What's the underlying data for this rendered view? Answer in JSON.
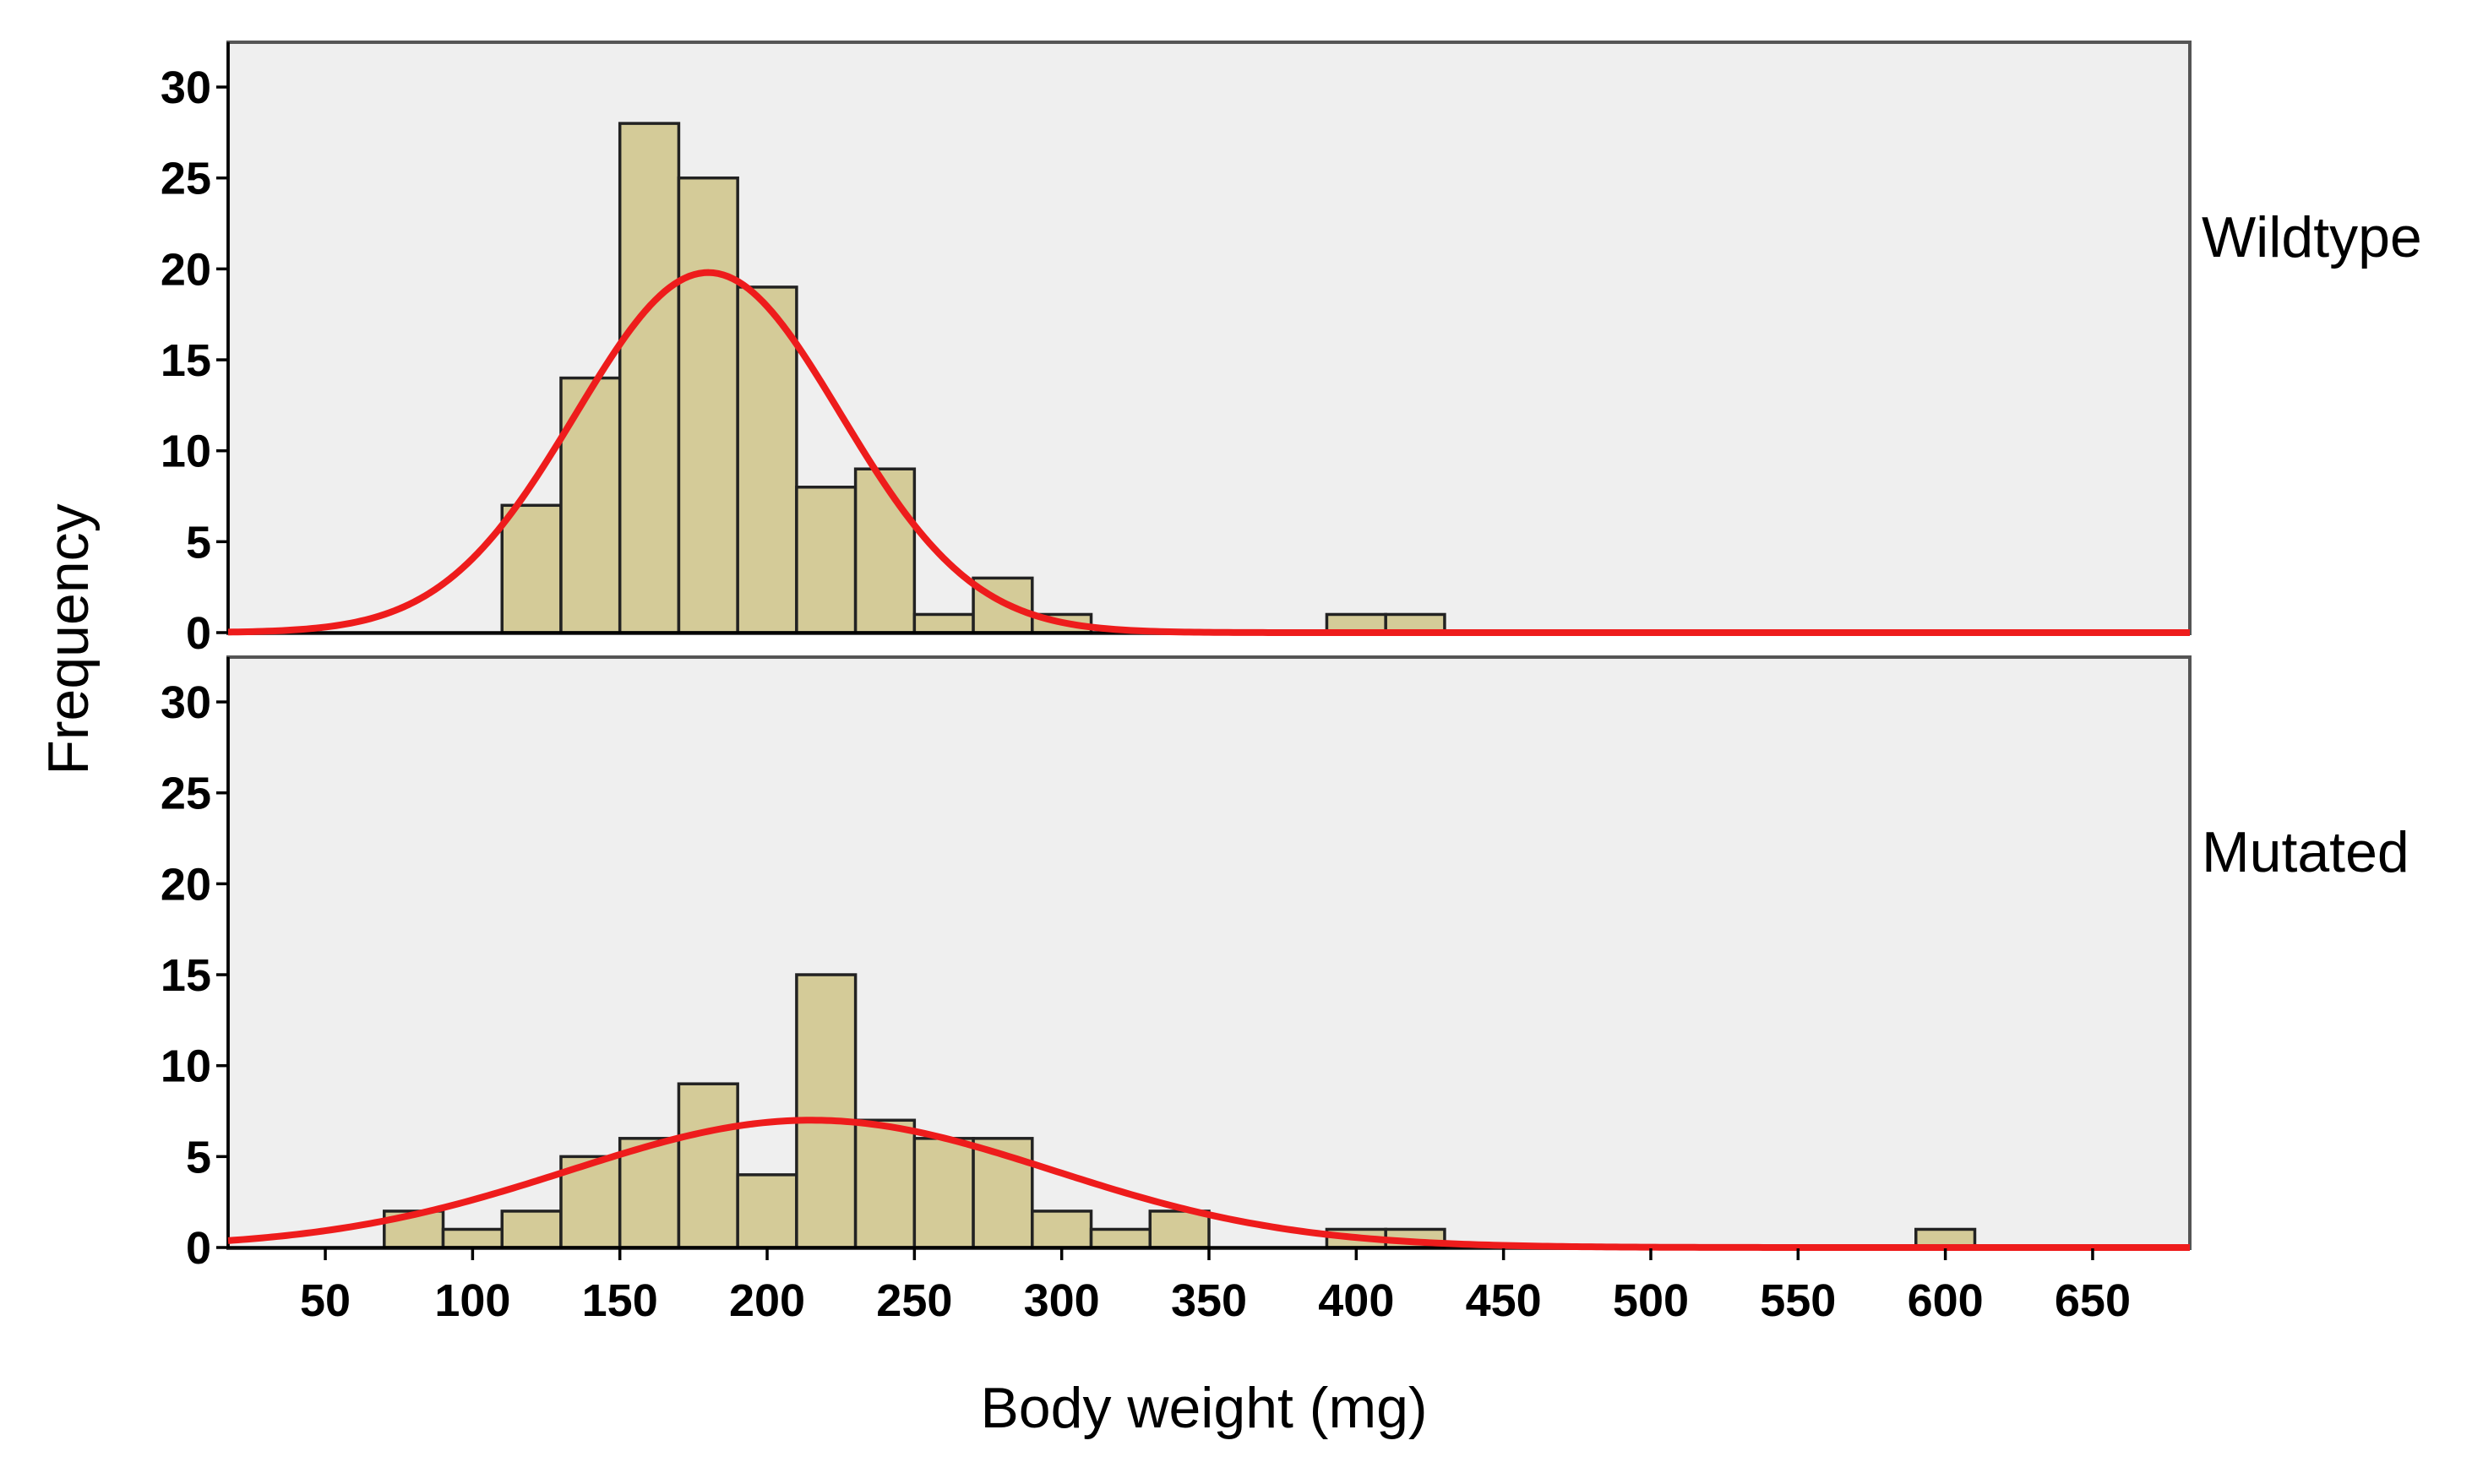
{
  "colors": {
    "bar_fill": "#d4cb98",
    "bar_stroke": "#222222",
    "curve": "#ee1c1c",
    "panel_background": "#efefef"
  },
  "chart_data": {
    "type": "bar",
    "subtype": "histogram with fitted normal curve, two stacked panels",
    "xlabel": "Body weight (mg)",
    "ylabel": "Frequency",
    "xlim": [
      17,
      683
    ],
    "ylim": [
      0,
      32
    ],
    "x_ticks": [
      50,
      100,
      150,
      200,
      250,
      300,
      350,
      400,
      450,
      500,
      550,
      600,
      650
    ],
    "y_ticks": [
      0,
      5,
      10,
      15,
      20,
      25,
      30
    ],
    "bin_width": 20,
    "grid": false,
    "panels": [
      {
        "name": "Wildtype",
        "bins": [
          {
            "start": 110,
            "count": 7
          },
          {
            "start": 130,
            "count": 14
          },
          {
            "start": 150,
            "count": 28
          },
          {
            "start": 170,
            "count": 25
          },
          {
            "start": 190,
            "count": 19
          },
          {
            "start": 210,
            "count": 8
          },
          {
            "start": 230,
            "count": 9
          },
          {
            "start": 250,
            "count": 1
          },
          {
            "start": 270,
            "count": 3
          },
          {
            "start": 290,
            "count": 1
          },
          {
            "start": 390,
            "count": 1
          },
          {
            "start": 410,
            "count": 1
          }
        ],
        "normal_fit": {
          "mean": 180,
          "sd": 45,
          "peak": 19.8
        }
      },
      {
        "name": "Mutated",
        "bins": [
          {
            "start": 70,
            "count": 2
          },
          {
            "start": 90,
            "count": 1
          },
          {
            "start": 110,
            "count": 2
          },
          {
            "start": 130,
            "count": 5
          },
          {
            "start": 150,
            "count": 6
          },
          {
            "start": 170,
            "count": 9
          },
          {
            "start": 190,
            "count": 4
          },
          {
            "start": 210,
            "count": 15
          },
          {
            "start": 230,
            "count": 7
          },
          {
            "start": 250,
            "count": 6
          },
          {
            "start": 270,
            "count": 6
          },
          {
            "start": 290,
            "count": 2
          },
          {
            "start": 310,
            "count": 1
          },
          {
            "start": 330,
            "count": 2
          },
          {
            "start": 390,
            "count": 1
          },
          {
            "start": 410,
            "count": 1
          },
          {
            "start": 590,
            "count": 1
          }
        ],
        "normal_fit": {
          "mean": 215,
          "sd": 82,
          "peak": 7.0
        }
      }
    ]
  }
}
